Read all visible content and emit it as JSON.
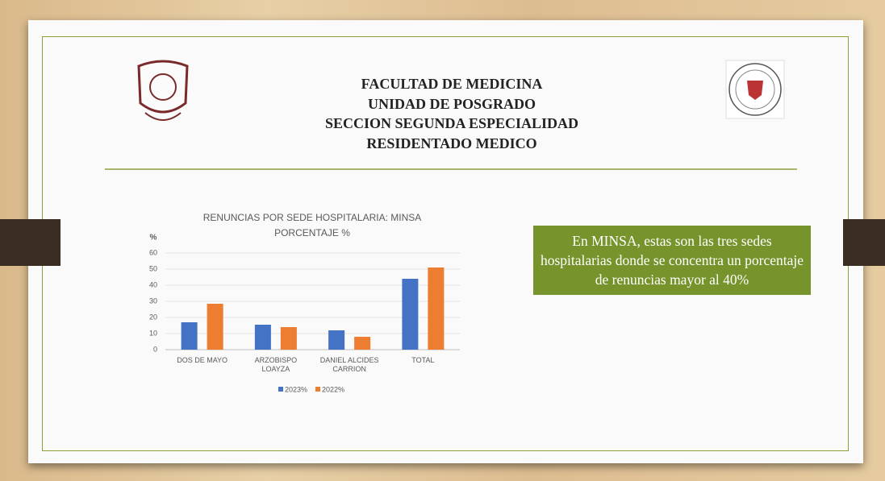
{
  "header": {
    "lines": [
      "FACULTAD DE MEDICINA",
      "UNIDAD DE POSGRADO",
      "SECCION SEGUNDA ESPECIALIDAD",
      "RESIDENTADO MEDICO"
    ]
  },
  "callout": "En MINSA, estas son las tres sedes hospitalarias donde se concentra un porcentaje de renuncias mayor al 40%",
  "chart_data": {
    "type": "bar",
    "title": "RENUNCIAS POR SEDE HOSPITALARIA: MINSA",
    "subtitle": "PORCENTAJE %",
    "y_label": "%",
    "categories": [
      "DOS DE MAYO",
      "ARZOBISPO LOAYZA",
      "DANIEL ALCIDES CARRION",
      "TOTAL"
    ],
    "series": [
      {
        "name": "2023%",
        "color": "#4472c4",
        "values": [
          17,
          15.5,
          12,
          44
        ]
      },
      {
        "name": "2022%",
        "color": "#ed7d31",
        "values": [
          28.5,
          14,
          8,
          51
        ]
      }
    ],
    "ylim": [
      0,
      60
    ],
    "yticks": [
      0,
      10,
      20,
      30,
      40,
      50,
      60
    ],
    "grid": true,
    "legend": "bottom"
  }
}
